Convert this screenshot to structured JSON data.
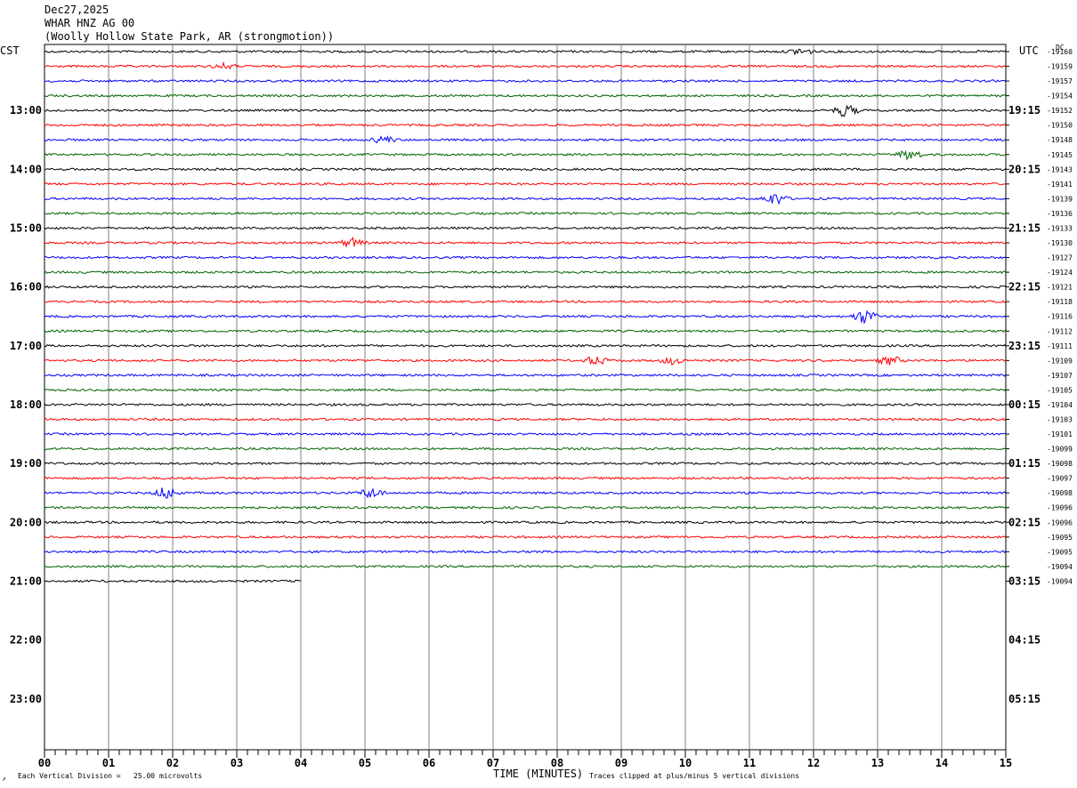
{
  "header": {
    "date": "Dec27,2025",
    "station": "WHAR HNZ AG 00",
    "location": "(Woolly Hollow State Park, AR (strongmotion))"
  },
  "left_zone": "CST",
  "right_zone": "UTC",
  "dc_label": "DC",
  "footer": {
    "division_note": "Each Vertical Division =   25.00 microvolts",
    "xlabel": "TIME (MINUTES)",
    "clip_note": "Traces clipped at plus/minus 5 vertical divisions"
  },
  "colors": {
    "trace_cycle": [
      "#000000",
      "#ff0000",
      "#0000ff",
      "#006400"
    ],
    "grid": "#808080"
  },
  "chart_data": {
    "type": "line",
    "title": "WHAR HNZ AG 00",
    "xlabel": "TIME (MINUTES)",
    "xlim": [
      0,
      15
    ],
    "x_ticks": [
      "00",
      "01",
      "02",
      "03",
      "04",
      "05",
      "06",
      "07",
      "08",
      "09",
      "10",
      "11",
      "12",
      "13",
      "14",
      "15"
    ],
    "hour_rows": [
      {
        "cst": "",
        "utc": ""
      },
      {
        "cst": "13:00",
        "utc": "19:15"
      },
      {
        "cst": "14:00",
        "utc": "20:15"
      },
      {
        "cst": "15:00",
        "utc": "21:15"
      },
      {
        "cst": "16:00",
        "utc": "22:15"
      },
      {
        "cst": "17:00",
        "utc": "23:15"
      },
      {
        "cst": "18:00",
        "utc": "00:15"
      },
      {
        "cst": "19:00",
        "utc": "01:15"
      },
      {
        "cst": "20:00",
        "utc": "02:15"
      },
      {
        "cst": "21:00",
        "utc": "03:15"
      },
      {
        "cst": "22:00",
        "utc": "04:15"
      },
      {
        "cst": "23:00",
        "utc": "05:15"
      }
    ],
    "dc_offsets": [
      "-19160",
      "-19159",
      "-19157",
      "-19154",
      "-19152",
      "-19150",
      "-19148",
      "-19145",
      "-19143",
      "-19141",
      "-19139",
      "-19136",
      "-19133",
      "-19130",
      "-19127",
      "-19124",
      "-19121",
      "-19118",
      "-19116",
      "-19112",
      "-19111",
      "-19109",
      "-19107",
      "-19105",
      "-19104",
      "-19103",
      "-19101",
      "-19099",
      "-19098",
      "-19097",
      "-19098",
      "-19096",
      "-19096",
      "-19095",
      "-19095",
      "-19094",
      "-19094"
    ],
    "trace_end_minute": [
      15,
      15,
      15,
      15,
      15,
      15,
      15,
      15,
      15,
      15,
      15,
      15,
      15,
      15,
      15,
      15,
      15,
      15,
      15,
      15,
      15,
      15,
      15,
      15,
      15,
      15,
      15,
      15,
      15,
      15,
      15,
      15,
      15,
      15,
      15,
      15,
      4
    ],
    "events": [
      {
        "trace": 0,
        "minute": 11.8,
        "amp": 4
      },
      {
        "trace": 1,
        "minute": 2.8,
        "amp": 3
      },
      {
        "trace": 4,
        "minute": 12.5,
        "amp": 7
      },
      {
        "trace": 6,
        "minute": 5.3,
        "amp": 4
      },
      {
        "trace": 7,
        "minute": 13.5,
        "amp": 6
      },
      {
        "trace": 10,
        "minute": 11.4,
        "amp": 7
      },
      {
        "trace": 13,
        "minute": 4.8,
        "amp": 5
      },
      {
        "trace": 18,
        "minute": 12.8,
        "amp": 8
      },
      {
        "trace": 21,
        "minute": 8.6,
        "amp": 5
      },
      {
        "trace": 21,
        "minute": 9.8,
        "amp": 4
      },
      {
        "trace": 21,
        "minute": 13.2,
        "amp": 5
      },
      {
        "trace": 30,
        "minute": 1.9,
        "amp": 7
      },
      {
        "trace": 30,
        "minute": 5.1,
        "amp": 6
      }
    ]
  }
}
